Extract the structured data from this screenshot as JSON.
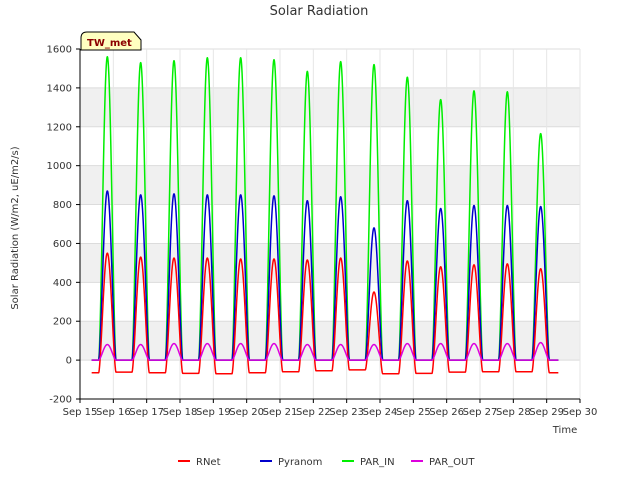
{
  "chart_data": {
    "type": "line",
    "title": "Solar Radiation",
    "xlabel": "Time",
    "ylabel": "Solar Radiation (W/m2, uE/m2/s)",
    "badge": "TW_met",
    "xlim": [
      15,
      30
    ],
    "ylim": [
      -200,
      1600
    ],
    "x_ticks": [
      15,
      16,
      17,
      18,
      19,
      20,
      21,
      22,
      23,
      24,
      25,
      26,
      27,
      28,
      29,
      30
    ],
    "x_tick_labels": [
      "Sep 15",
      "Sep 16",
      "Sep 17",
      "Sep 18",
      "Sep 19",
      "Sep 20",
      "Sep 21",
      "Sep 22",
      "Sep 23",
      "Sep 24",
      "Sep 25",
      "Sep 26",
      "Sep 27",
      "Sep 28",
      "Sep 29",
      "Sep 30"
    ],
    "y_ticks": [
      -200,
      0,
      200,
      400,
      600,
      800,
      1000,
      1200,
      1400,
      1600
    ],
    "y_tick_labels": [
      "-200",
      "0",
      "200",
      "400",
      "600",
      "800",
      "1000",
      "1200",
      "1400",
      "1600"
    ],
    "grid": true,
    "legend_position": "bottom",
    "series": [
      {
        "name": "RNet",
        "color": "#ff0000",
        "data_start": 15.35,
        "data_end": 29.35,
        "night": [
          -65,
          -62,
          -65,
          -68,
          -70,
          -65,
          -60,
          -55,
          -50,
          -70,
          -68,
          -62,
          -60,
          -60,
          -65
        ],
        "peaks": [
          {
            "day": 15,
            "center": 15.82,
            "value": 550
          },
          {
            "day": 16,
            "center": 16.82,
            "value": 530
          },
          {
            "day": 17,
            "center": 17.82,
            "value": 525
          },
          {
            "day": 18,
            "center": 18.82,
            "value": 525
          },
          {
            "day": 19,
            "center": 19.82,
            "value": 520
          },
          {
            "day": 20,
            "center": 20.82,
            "value": 520
          },
          {
            "day": 21,
            "center": 21.82,
            "value": 515
          },
          {
            "day": 22,
            "center": 22.82,
            "value": 525
          },
          {
            "day": 23,
            "center": 23.82,
            "value": 350
          },
          {
            "day": 24,
            "center": 24.82,
            "value": 510
          },
          {
            "day": 25,
            "center": 25.82,
            "value": 480
          },
          {
            "day": 26,
            "center": 26.82,
            "value": 490
          },
          {
            "day": 27,
            "center": 27.82,
            "value": 495
          },
          {
            "day": 28,
            "center": 28.82,
            "value": 470
          }
        ]
      },
      {
        "name": "Pyranom",
        "color": "#0000cc",
        "data_start": 15.35,
        "data_end": 29.35,
        "night": [
          0,
          0,
          0,
          0,
          0,
          0,
          0,
          0,
          0,
          0,
          0,
          0,
          0,
          0,
          0
        ],
        "peaks": [
          {
            "day": 15,
            "center": 15.82,
            "value": 870
          },
          {
            "day": 16,
            "center": 16.82,
            "value": 850
          },
          {
            "day": 17,
            "center": 17.82,
            "value": 855
          },
          {
            "day": 18,
            "center": 18.82,
            "value": 850
          },
          {
            "day": 19,
            "center": 19.82,
            "value": 850
          },
          {
            "day": 20,
            "center": 20.82,
            "value": 845
          },
          {
            "day": 21,
            "center": 21.82,
            "value": 820
          },
          {
            "day": 22,
            "center": 22.82,
            "value": 840
          },
          {
            "day": 23,
            "center": 23.82,
            "value": 680
          },
          {
            "day": 24,
            "center": 24.82,
            "value": 820
          },
          {
            "day": 25,
            "center": 25.82,
            "value": 780
          },
          {
            "day": 26,
            "center": 26.82,
            "value": 795
          },
          {
            "day": 27,
            "center": 27.82,
            "value": 795
          },
          {
            "day": 28,
            "center": 28.82,
            "value": 790
          }
        ]
      },
      {
        "name": "PAR_IN",
        "color": "#00ee00",
        "data_start": 15.35,
        "data_end": 29.35,
        "night": [
          0,
          0,
          0,
          0,
          0,
          0,
          0,
          0,
          0,
          0,
          0,
          0,
          0,
          0,
          0
        ],
        "peaks": [
          {
            "day": 15,
            "center": 15.82,
            "value": 1560
          },
          {
            "day": 16,
            "center": 16.82,
            "value": 1530
          },
          {
            "day": 17,
            "center": 17.82,
            "value": 1540
          },
          {
            "day": 18,
            "center": 18.82,
            "value": 1555
          },
          {
            "day": 19,
            "center": 19.82,
            "value": 1555
          },
          {
            "day": 20,
            "center": 20.82,
            "value": 1545
          },
          {
            "day": 21,
            "center": 21.82,
            "value": 1485
          },
          {
            "day": 22,
            "center": 22.82,
            "value": 1535
          },
          {
            "day": 23,
            "center": 23.82,
            "value": 1520
          },
          {
            "day": 24,
            "center": 24.82,
            "value": 1455
          },
          {
            "day": 25,
            "center": 25.82,
            "value": 1340
          },
          {
            "day": 26,
            "center": 26.82,
            "value": 1385
          },
          {
            "day": 27,
            "center": 27.82,
            "value": 1380
          },
          {
            "day": 28,
            "center": 28.82,
            "value": 1165
          }
        ]
      },
      {
        "name": "PAR_OUT",
        "color": "#dd00dd",
        "data_start": 15.35,
        "data_end": 29.35,
        "night": [
          0,
          0,
          0,
          0,
          0,
          0,
          0,
          0,
          0,
          0,
          0,
          0,
          0,
          0,
          0
        ],
        "peaks": [
          {
            "day": 15,
            "center": 15.82,
            "value": 80
          },
          {
            "day": 16,
            "center": 16.82,
            "value": 80
          },
          {
            "day": 17,
            "center": 17.82,
            "value": 85
          },
          {
            "day": 18,
            "center": 18.82,
            "value": 85
          },
          {
            "day": 19,
            "center": 19.82,
            "value": 85
          },
          {
            "day": 20,
            "center": 20.82,
            "value": 85
          },
          {
            "day": 21,
            "center": 21.82,
            "value": 80
          },
          {
            "day": 22,
            "center": 22.82,
            "value": 80
          },
          {
            "day": 23,
            "center": 23.82,
            "value": 80
          },
          {
            "day": 24,
            "center": 24.82,
            "value": 85
          },
          {
            "day": 25,
            "center": 25.82,
            "value": 85
          },
          {
            "day": 26,
            "center": 26.82,
            "value": 85
          },
          {
            "day": 27,
            "center": 27.82,
            "value": 85
          },
          {
            "day": 28,
            "center": 28.82,
            "value": 90
          }
        ]
      }
    ]
  }
}
